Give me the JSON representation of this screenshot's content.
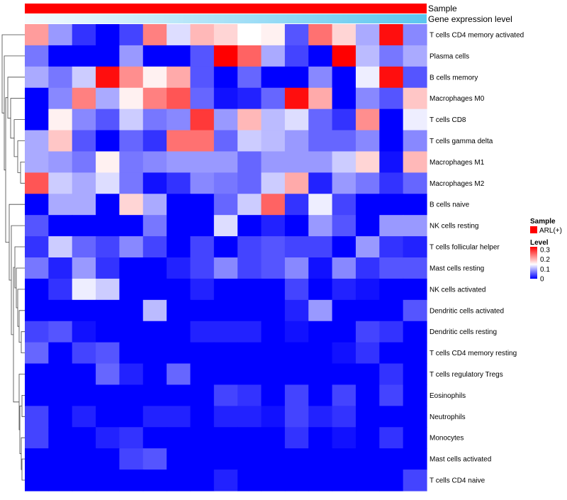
{
  "chart_data": {
    "type": "heatmap",
    "title": "",
    "annotation_tracks": [
      {
        "name": "Sample",
        "color": "#ff0000"
      },
      {
        "name": "Gene expression level",
        "gradient": [
          "#f4fbff",
          "#5dc8f0"
        ]
      }
    ],
    "rows": [
      "T cells CD4 memory activated",
      "Plasma cells",
      "B cells memory",
      "Macrophages M0",
      "T cells CD8",
      "T cells gamma delta",
      "Macrophages M1",
      "Macrophages M2",
      "B cells naive",
      "NK cells resting",
      "T cells follicular helper",
      "Mast cells resting",
      "NK cells activated",
      "Dendritic cells activated",
      "Dendritic cells resting",
      "T cells CD4 memory resting",
      "T cells regulatory  Tregs",
      "Eosinophils",
      "Neutrophils",
      "Monocytes",
      "Mast cells activated",
      "T cells CD4 naive"
    ],
    "n_columns": 17,
    "values": [
      [
        0.22,
        0.09,
        0.03,
        0.0,
        0.04,
        0.24,
        0.13,
        0.2,
        0.18,
        0.15,
        0.16,
        0.05,
        0.25,
        0.18,
        0.1,
        0.32,
        0.08
      ],
      [
        0.07,
        0.0,
        0.0,
        0.0,
        0.09,
        0.0,
        0.0,
        0.05,
        0.33,
        0.26,
        0.1,
        0.04,
        0.0,
        0.33,
        0.11,
        0.07,
        0.1
      ],
      [
        0.1,
        0.07,
        0.12,
        0.32,
        0.23,
        0.16,
        0.21,
        0.05,
        0.0,
        0.06,
        0.0,
        0.0,
        0.08,
        0.0,
        0.14,
        0.32,
        0.05
      ],
      [
        0.0,
        0.08,
        0.24,
        0.1,
        0.16,
        0.24,
        0.27,
        0.06,
        0.01,
        0.02,
        0.06,
        0.32,
        0.21,
        0.0,
        0.08,
        0.05,
        0.19
      ],
      [
        0.0,
        0.16,
        0.08,
        0.05,
        0.12,
        0.07,
        0.08,
        0.29,
        0.09,
        0.2,
        0.11,
        0.13,
        0.06,
        0.03,
        0.23,
        0.0,
        0.14
      ],
      [
        0.1,
        0.19,
        0.05,
        0.0,
        0.06,
        0.03,
        0.25,
        0.25,
        0.06,
        0.12,
        0.11,
        0.09,
        0.06,
        0.06,
        0.08,
        0.0,
        0.08
      ],
      [
        0.1,
        0.09,
        0.07,
        0.16,
        0.07,
        0.08,
        0.09,
        0.09,
        0.09,
        0.06,
        0.09,
        0.09,
        0.09,
        0.12,
        0.18,
        0.01,
        0.2
      ],
      [
        0.27,
        0.12,
        0.1,
        0.13,
        0.07,
        0.01,
        0.03,
        0.08,
        0.07,
        0.06,
        0.12,
        0.21,
        0.02,
        0.09,
        0.07,
        0.03,
        0.06
      ],
      [
        0.0,
        0.1,
        0.1,
        0.0,
        0.18,
        0.1,
        0.0,
        0.0,
        0.06,
        0.12,
        0.26,
        0.03,
        0.14,
        0.04,
        0.0,
        0.0,
        0.0
      ],
      [
        0.05,
        0.0,
        0.0,
        0.0,
        0.0,
        0.07,
        0.0,
        0.0,
        0.13,
        0.0,
        0.02,
        0.0,
        0.09,
        0.05,
        0.0,
        0.09,
        0.09
      ],
      [
        0.03,
        0.12,
        0.06,
        0.04,
        0.08,
        0.04,
        0.0,
        0.04,
        0.0,
        0.04,
        0.05,
        0.04,
        0.04,
        0.0,
        0.09,
        0.03,
        0.02
      ],
      [
        0.07,
        0.02,
        0.09,
        0.03,
        0.0,
        0.0,
        0.02,
        0.04,
        0.08,
        0.04,
        0.05,
        0.08,
        0.01,
        0.08,
        0.03,
        0.05,
        0.05
      ],
      [
        0.0,
        0.03,
        0.14,
        0.12,
        0.0,
        0.0,
        0.0,
        0.02,
        0.0,
        0.0,
        0.0,
        0.04,
        0.0,
        0.02,
        0.01,
        0.0,
        0.0
      ],
      [
        0.0,
        0.0,
        0.0,
        0.0,
        0.0,
        0.11,
        0.0,
        0.0,
        0.0,
        0.0,
        0.0,
        0.02,
        0.09,
        0.0,
        0.0,
        0.0,
        0.05
      ],
      [
        0.04,
        0.05,
        0.01,
        0.0,
        0.0,
        0.0,
        0.0,
        0.02,
        0.02,
        0.02,
        0.0,
        0.01,
        0.0,
        0.0,
        0.04,
        0.03,
        0.0
      ],
      [
        0.06,
        0.0,
        0.04,
        0.05,
        0.0,
        0.0,
        0.0,
        0.0,
        0.0,
        0.0,
        0.0,
        0.0,
        0.0,
        0.01,
        0.03,
        0.0,
        0.0
      ],
      [
        0.0,
        0.0,
        0.0,
        0.06,
        0.02,
        0.0,
        0.06,
        0.0,
        0.0,
        0.0,
        0.0,
        0.0,
        0.0,
        0.0,
        0.0,
        0.03,
        0.0
      ],
      [
        0.0,
        0.0,
        0.0,
        0.0,
        0.0,
        0.0,
        0.0,
        0.0,
        0.04,
        0.03,
        0.0,
        0.04,
        0.0,
        0.04,
        0.0,
        0.04,
        0.0
      ],
      [
        0.04,
        0.0,
        0.02,
        0.0,
        0.0,
        0.02,
        0.02,
        0.0,
        0.02,
        0.02,
        0.01,
        0.04,
        0.02,
        0.03,
        0.0,
        0.0,
        0.0
      ],
      [
        0.04,
        0.0,
        0.0,
        0.02,
        0.03,
        0.0,
        0.0,
        0.0,
        0.0,
        0.0,
        0.0,
        0.03,
        0.0,
        0.01,
        0.0,
        0.03,
        0.0
      ],
      [
        0.0,
        0.0,
        0.0,
        0.0,
        0.04,
        0.05,
        0.0,
        0.0,
        0.0,
        0.0,
        0.0,
        0.0,
        0.0,
        0.0,
        0.0,
        0.0,
        0.0
      ],
      [
        0.0,
        0.0,
        0.0,
        0.0,
        0.0,
        0.0,
        0.0,
        0.0,
        0.02,
        0.0,
        0.0,
        0.0,
        0.0,
        0.0,
        0.0,
        0.0,
        0.04
      ]
    ],
    "color_scale": {
      "colors": [
        "#0000ff",
        "#ffffff",
        "#ff0000"
      ],
      "domain": [
        0,
        0.15,
        0.33
      ]
    },
    "legend": {
      "placement": "right",
      "sample": {
        "title": "Sample",
        "entry": "ARL(+)",
        "color": "#ff0000"
      },
      "level": {
        "title": "Level",
        "ticks": [
          "0.3",
          "0.2",
          "0.1",
          "0"
        ],
        "tick_values": [
          0.3,
          0.2,
          0.1,
          0
        ]
      }
    }
  }
}
